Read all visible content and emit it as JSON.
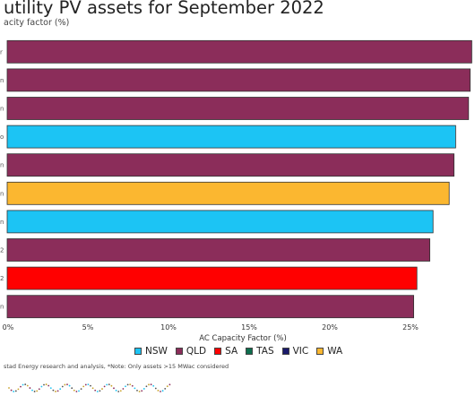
{
  "header": {
    "title": "utility PV assets for September 2022",
    "subtitle": "acity factor (%)"
  },
  "footnote": "stad Energy research and analysis, *Note: Only assets >15 MWac considered",
  "legend": [
    {
      "name": "NSW",
      "color": "#1cc4f4"
    },
    {
      "name": "QLD",
      "color": "#8b2d5a"
    },
    {
      "name": "SA",
      "color": "#ff0000"
    },
    {
      "name": "TAS",
      "color": "#0e6e4e"
    },
    {
      "name": "VIC",
      "color": "#1a1a6b"
    },
    {
      "name": "WA",
      "color": "#fbb730"
    }
  ],
  "chart_data": {
    "type": "bar",
    "orientation": "horizontal",
    "title": "utility PV assets for September 2022",
    "xlabel": "AC Capacity Factor (%)",
    "ylabel": "",
    "xlim": [
      0,
      29
    ],
    "x_ticks": [
      "0%",
      "5%",
      "10%",
      "15%",
      "20%",
      "25%"
    ],
    "x_tick_values": [
      0,
      5,
      10,
      15,
      20,
      25
    ],
    "categories": [
      "r",
      "n",
      "n",
      "o",
      "n",
      "n",
      "n",
      "2",
      "2",
      "n"
    ],
    "values": [
      28.8,
      28.7,
      28.6,
      27.8,
      27.7,
      27.4,
      26.4,
      26.2,
      25.4,
      25.2
    ],
    "states": [
      "QLD",
      "QLD",
      "QLD",
      "NSW",
      "QLD",
      "WA",
      "NSW",
      "QLD",
      "SA",
      "QLD"
    ],
    "grid": false,
    "legend_position": "bottom"
  }
}
